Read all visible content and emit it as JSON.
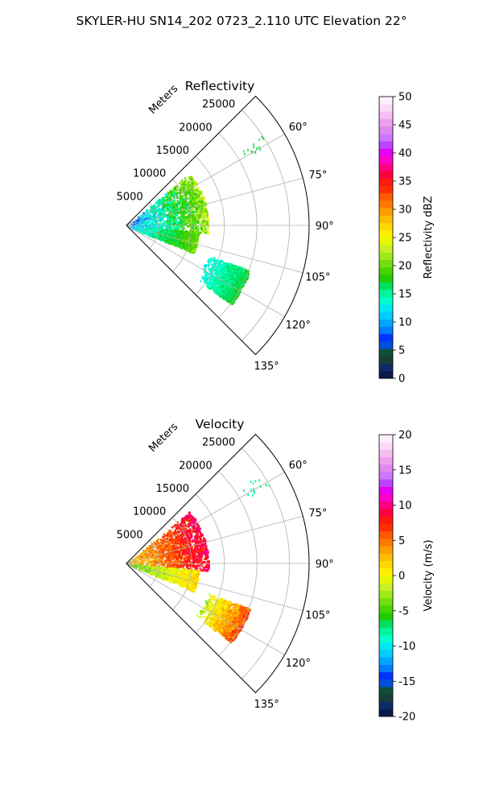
{
  "figure": {
    "title": "SKYLER-HU  SN14_202  0723_2.110 UTC Elevation 22°"
  },
  "chart_data": [
    {
      "type": "polar-sector",
      "title": "Reflectivity",
      "range_label": "Meters",
      "range_ticks": [
        5000,
        10000,
        15000,
        20000,
        25000
      ],
      "range_tick_labels": [
        "5000",
        "10000",
        "15000",
        "20000",
        "25000"
      ],
      "range_max": 28000,
      "azimuth_range_deg": [
        45,
        135
      ],
      "azimuth_ticks_deg": [
        45,
        60,
        75,
        90,
        105,
        120,
        135
      ],
      "azimuth_tick_labels": [
        "60°",
        "75°",
        "90°",
        "105°",
        "120°",
        "135°"
      ],
      "grid": true,
      "echo_features": [
        {
          "region": "main cluster",
          "az": [
            50,
            95
          ],
          "range": [
            0,
            12500
          ],
          "value_range": [
            5,
            25
          ]
        },
        {
          "region": "south cluster",
          "az": [
            95,
            112
          ],
          "range": [
            0,
            11000
          ],
          "value_range": [
            10,
            22
          ]
        },
        {
          "region": "isolated echoes far NE",
          "az": [
            56,
            62
          ],
          "range": [
            21000,
            25000
          ],
          "value_range": [
            15,
            18
          ]
        },
        {
          "region": "isolated echoes far SE",
          "az": [
            110,
            127
          ],
          "range": [
            13000,
            20000
          ],
          "value_range": [
            12,
            18
          ]
        }
      ],
      "colorbar": {
        "label": "Reflectivity dBZ",
        "vmin": 0,
        "vmax": 50,
        "ticks": [
          0,
          5,
          10,
          15,
          20,
          25,
          30,
          35,
          40,
          45,
          50
        ],
        "tick_labels": [
          "0",
          "5",
          "10",
          "15",
          "20",
          "25",
          "30",
          "35",
          "40",
          "45",
          "50"
        ],
        "colors": [
          "#0a1a4a",
          "#0f2b6a",
          "#1a3d3a",
          "#10503a",
          "#004fdd",
          "#0033ff",
          "#007cff",
          "#00a6ff",
          "#00ccff",
          "#00e8f0",
          "#00ffcc",
          "#00f59a",
          "#00e060",
          "#22cc00",
          "#48d400",
          "#72de10",
          "#9eea18",
          "#c8f024",
          "#e8f800",
          "#fff000",
          "#ffd800",
          "#ffbd00",
          "#ff9d00",
          "#ff7a00",
          "#ff5a00",
          "#ff3000",
          "#ff1a10",
          "#ff0040",
          "#ff0080",
          "#ff00c8",
          "#e400f0",
          "#bb44ff",
          "#cc77ff",
          "#e088ee",
          "#eea0ee",
          "#f5bdf0",
          "#fbd8f6",
          "#fdf0fc"
        ]
      }
    },
    {
      "type": "polar-sector",
      "title": "Velocity",
      "range_label": "Meters",
      "range_ticks": [
        5000,
        10000,
        15000,
        20000,
        25000
      ],
      "range_tick_labels": [
        "5000",
        "10000",
        "15000",
        "20000",
        "25000"
      ],
      "range_max": 28000,
      "azimuth_range_deg": [
        45,
        135
      ],
      "azimuth_ticks_deg": [
        45,
        60,
        75,
        90,
        105,
        120,
        135
      ],
      "azimuth_tick_labels": [
        "60°",
        "75°",
        "90°",
        "105°",
        "120°",
        "135°"
      ],
      "grid": true,
      "echo_features": [
        {
          "region": "main cluster",
          "az": [
            50,
            95
          ],
          "range": [
            0,
            12500
          ],
          "value_range": [
            0,
            11
          ]
        },
        {
          "region": "south cluster",
          "az": [
            95,
            112
          ],
          "range": [
            0,
            11000
          ],
          "value_range": [
            -6,
            3
          ]
        },
        {
          "region": "isolated echoes far NE",
          "az": [
            56,
            62
          ],
          "range": [
            21000,
            25000
          ],
          "value_range": [
            -9,
            -7
          ]
        },
        {
          "region": "isolated echoes far SE",
          "az": [
            110,
            127
          ],
          "range": [
            13000,
            20000
          ],
          "value_range": [
            -4,
            8
          ]
        }
      ],
      "colorbar": {
        "label": "Velocity (m/s)",
        "vmin": -20,
        "vmax": 20,
        "ticks": [
          -20,
          -15,
          -10,
          -5,
          0,
          5,
          10,
          15,
          20
        ],
        "tick_labels": [
          "-20",
          "-15",
          "-10",
          "-5",
          "0",
          "5",
          "10",
          "15",
          "20"
        ],
        "colors": [
          "#0a1a4a",
          "#0f2b6a",
          "#1a3d3a",
          "#10503a",
          "#004fdd",
          "#0033ff",
          "#007cff",
          "#00a6ff",
          "#00ccff",
          "#00e8f0",
          "#00ffcc",
          "#00f59a",
          "#00e060",
          "#22cc00",
          "#48d400",
          "#72de10",
          "#9eea18",
          "#c8f024",
          "#e8f800",
          "#fff000",
          "#ffd800",
          "#ffbd00",
          "#ff9d00",
          "#ff7a00",
          "#ff5a00",
          "#ff3000",
          "#ff1a10",
          "#ff0040",
          "#ff0080",
          "#ff00c8",
          "#e400f0",
          "#bb44ff",
          "#cc77ff",
          "#e088ee",
          "#eea0ee",
          "#f5bdf0",
          "#fbd8f6",
          "#fdf0fc"
        ]
      }
    }
  ]
}
